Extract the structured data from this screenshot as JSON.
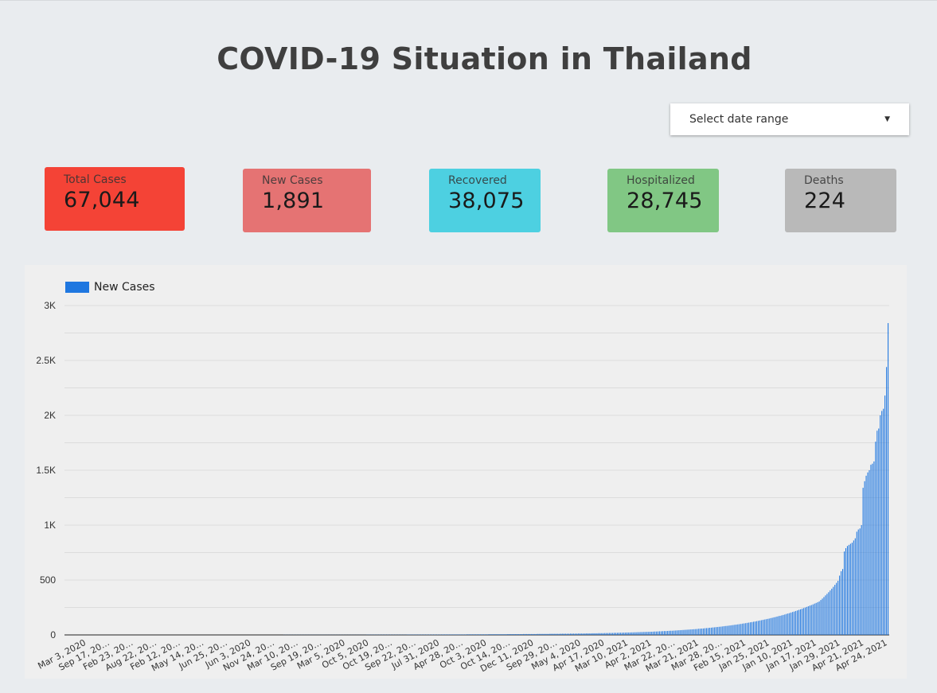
{
  "title": "COVID-19 Situation in Thailand",
  "date_range": {
    "label": "Select date range",
    "icon": "caret-down-icon"
  },
  "cards": {
    "total": {
      "label": "Total Cases",
      "value": "67,044",
      "color": "#f44336"
    },
    "new": {
      "label": "New Cases",
      "value": "1,891",
      "color": "#e57373"
    },
    "recovered": {
      "label": "Recovered",
      "value": "38,075",
      "color": "#4dd0e1"
    },
    "hospitalized": {
      "label": "Hospitalized",
      "value": "28,745",
      "color": "#81c784"
    },
    "deaths": {
      "label": "Deaths",
      "value": "224",
      "color": "#b9b9b9"
    }
  },
  "chart_data": {
    "type": "bar",
    "series": [
      {
        "name": "New Cases",
        "color": "#1f77e0"
      }
    ],
    "ylim": [
      0,
      3000
    ],
    "yticks": [
      0,
      500,
      1000,
      1500,
      2000,
      2500,
      3000
    ],
    "ytick_labels": [
      "0",
      "500",
      "1K",
      "1.5K",
      "2K",
      "2.5K",
      "3K"
    ],
    "grid": true,
    "legend_position": "top-left",
    "x_tick_labels": [
      "Mar 3, 2020",
      "Sep 17, 20…",
      "Feb 23, 20…",
      "Aug 22, 20…",
      "Feb 12, 20…",
      "May 14, 20…",
      "Jun 25, 20…",
      "Jun 3, 2020",
      "Nov 24, 20…",
      "Mar 10, 20…",
      "Sep 19, 20…",
      "Mar 5, 2020",
      "Oct 5, 2020",
      "Oct 19, 20…",
      "Sep 22, 20…",
      "Jul 31, 2020",
      "Apr 28, 20…",
      "Oct 3, 2020",
      "Oct 14, 20…",
      "Dec 11, 2020",
      "Sep 29, 20…",
      "May 4, 2020",
      "Apr 17, 2020",
      "Mar 10, 2021",
      "Apr 2, 2021",
      "Mar 22, 20…",
      "Mar 21, 2021",
      "Mar 28, 20…",
      "Feb 15, 2021",
      "Jan 25, 2021",
      "Jan 10, 2021",
      "Jan 17, 2021",
      "Jan 29, 2021",
      "Apr 21, 2021",
      "Apr 24, 2021"
    ],
    "values": [
      0,
      0,
      0,
      0,
      0,
      0,
      0,
      0,
      0,
      0,
      0,
      0,
      0,
      0,
      0,
      0,
      0,
      0,
      0,
      0,
      0,
      0,
      0,
      0,
      0,
      0,
      0,
      0,
      0,
      0,
      0,
      0,
      0,
      0,
      0,
      0,
      0,
      0,
      0,
      0,
      0,
      0,
      0,
      0,
      0,
      0,
      0,
      0,
      0,
      0,
      0,
      0,
      0,
      0,
      0,
      0,
      0,
      0,
      0,
      0,
      0,
      0,
      0,
      0,
      0,
      0,
      0,
      0,
      0,
      0,
      0,
      0,
      0,
      0,
      0,
      0,
      0,
      0,
      0,
      0,
      0,
      0,
      0,
      0,
      0,
      0,
      0,
      0,
      0,
      0,
      0,
      0,
      0,
      0,
      0,
      0,
      0,
      0,
      0,
      0,
      0,
      0,
      0,
      0,
      0,
      0,
      0,
      0,
      0,
      0,
      0,
      0,
      0,
      0,
      0,
      0,
      0,
      0,
      0,
      0,
      0,
      0,
      0,
      0,
      0,
      0,
      0,
      0,
      0,
      0,
      0,
      0,
      0,
      0,
      0,
      0,
      0,
      0,
      0,
      0,
      1,
      1,
      1,
      1,
      1,
      1,
      1,
      1,
      1,
      1,
      1,
      1,
      1,
      1,
      1,
      1,
      1,
      1,
      1,
      1,
      1,
      1,
      1,
      1,
      1,
      1,
      1,
      1,
      1,
      1,
      1,
      1,
      1,
      1,
      1,
      1,
      1,
      1,
      1,
      1,
      1,
      1,
      1,
      1,
      1,
      1,
      1,
      1,
      1,
      1,
      1,
      1,
      1,
      2,
      2,
      2,
      2,
      2,
      2,
      2,
      2,
      2,
      2,
      2,
      2,
      2,
      2,
      2,
      2,
      2,
      2,
      2,
      2,
      2,
      2,
      2,
      2,
      2,
      2,
      3,
      3,
      3,
      3,
      3,
      3,
      3,
      3,
      3,
      3,
      3,
      3,
      3,
      3,
      3,
      3,
      3,
      3,
      3,
      3,
      3,
      3,
      4,
      4,
      4,
      4,
      4,
      4,
      4,
      4,
      4,
      4,
      4,
      4,
      4,
      4,
      4,
      4,
      5,
      5,
      5,
      5,
      5,
      5,
      5,
      5,
      5,
      5,
      5,
      5,
      5,
      5,
      6,
      6,
      6,
      6,
      6,
      6,
      6,
      6,
      6,
      6,
      6,
      6,
      7,
      7,
      7,
      7,
      7,
      7,
      7,
      7,
      7,
      7,
      8,
      8,
      8,
      8,
      8,
      8,
      8,
      8,
      8,
      9,
      9,
      9,
      9,
      9,
      9,
      9,
      9,
      10,
      10,
      10,
      10,
      10,
      10,
      10,
      11,
      11,
      11,
      11,
      11,
      11,
      12,
      12,
      12,
      12,
      12,
      13,
      13,
      13,
      13,
      13,
      14,
      14,
      14,
      14,
      15,
      15,
      15,
      15,
      16,
      16,
      16,
      16,
      17,
      17,
      17,
      18,
      18,
      18,
      19,
      19,
      19,
      20,
      20,
      20,
      21,
      21,
      22,
      22,
      22,
      23,
      23,
      24,
      24,
      25,
      25,
      26,
      26,
      27,
      27,
      28,
      28,
      29,
      29,
      30,
      31,
      31,
      32,
      33,
      33,
      34,
      35,
      35,
      36,
      37,
      38,
      38,
      39,
      40,
      41,
      42,
      43,
      44,
      45,
      46,
      47,
      48,
      49,
      50,
      51,
      52,
      53,
      54,
      56,
      57,
      58,
      59,
      61,
      62,
      63,
      65,
      66,
      68,
      69,
      71,
      72,
      74,
      75,
      77,
      79,
      81,
      82,
      84,
      86,
      88,
      90,
      92,
      94,
      96,
      98,
      100,
      103,
      105,
      107,
      110,
      112,
      115,
      117,
      120,
      122,
      125,
      128,
      131,
      134,
      137,
      140,
      143,
      146,
      149,
      153,
      156,
      160,
      163,
      167,
      171,
      174,
      178,
      182,
      186,
      191,
      195,
      199,
      204,
      209,
      213,
      218,
      223,
      228,
      233,
      238,
      244,
      249,
      255,
      261,
      267,
      272,
      278,
      285,
      291,
      298,
      305,
      318,
      331,
      345,
      360,
      374,
      389,
      405,
      421,
      438,
      456,
      474,
      493,
      540,
      580,
      600,
      760,
      790,
      810,
      820,
      830,
      840,
      860,
      880,
      940,
      960,
      970,
      1000,
      1340,
      1400,
      1450,
      1480,
      1500,
      1550,
      1560,
      1580,
      1760,
      1860,
      1880,
      2000,
      2040,
      2060,
      2180,
      2440,
      2840
    ]
  }
}
